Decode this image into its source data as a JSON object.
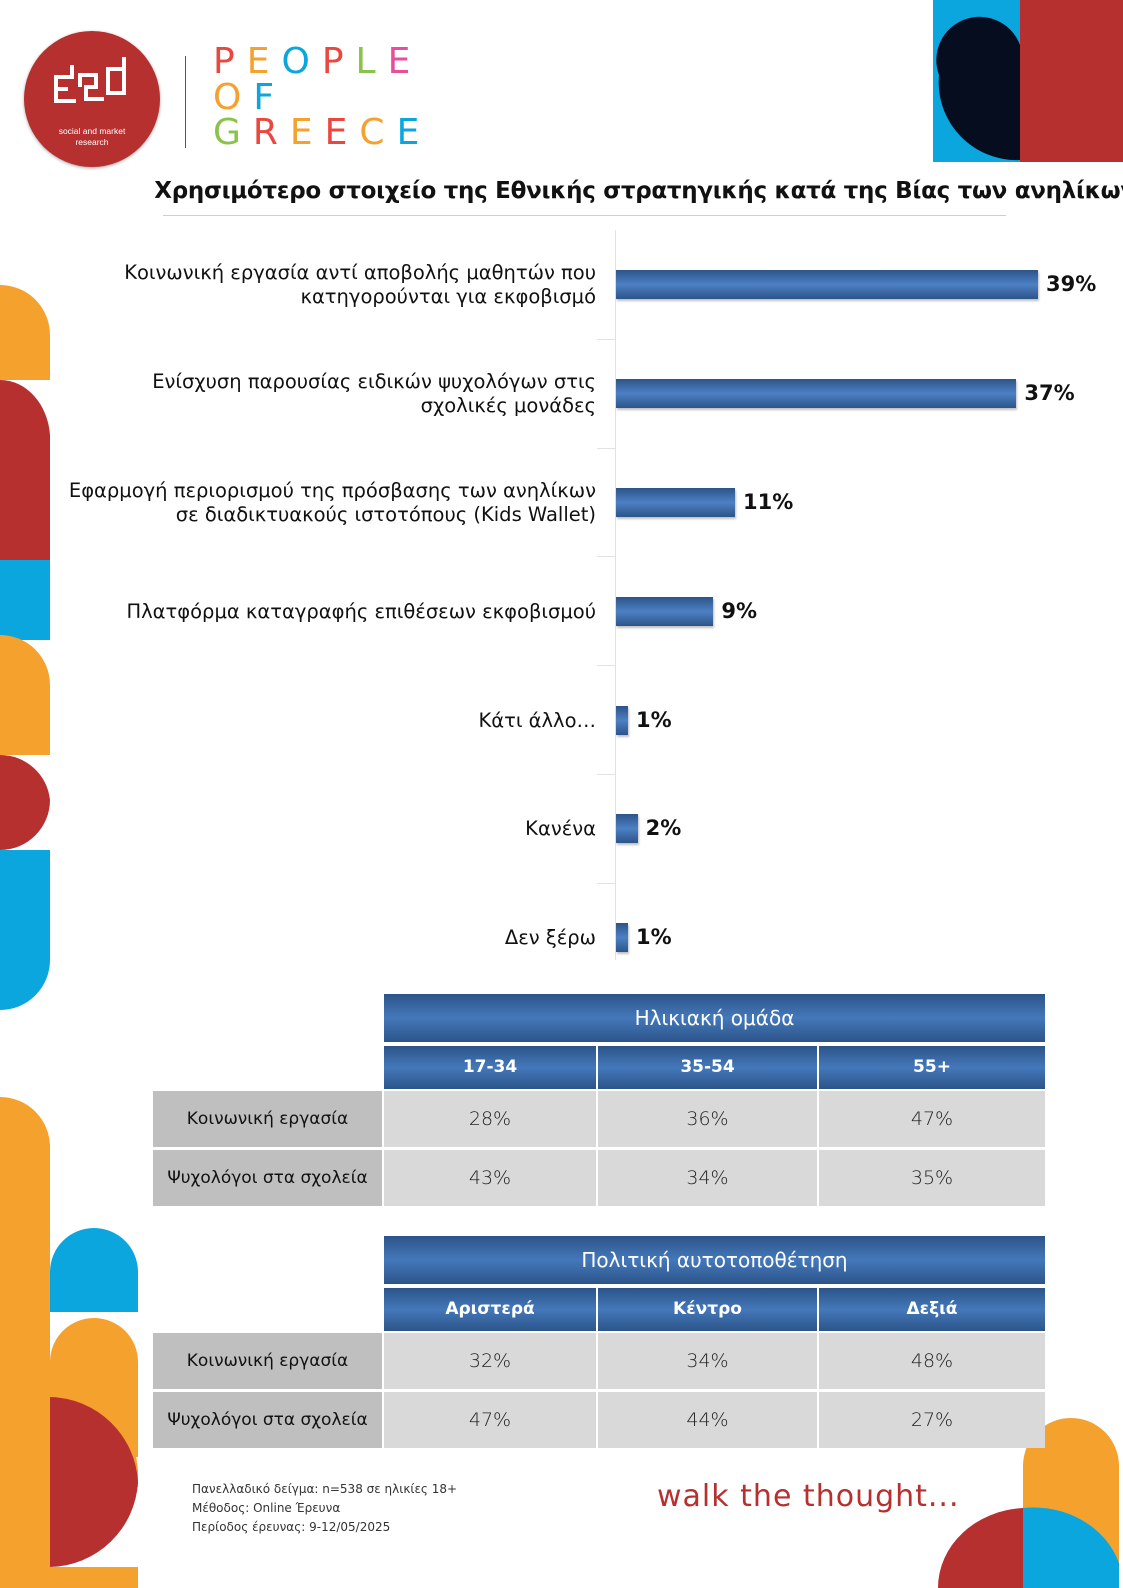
{
  "brand": {
    "logo_sub_line1": "social and market",
    "logo_sub_line2": "research",
    "people_of_greece": [
      {
        "letters": [
          {
            "ch": "P",
            "color": "#e9473f"
          },
          {
            "ch": "E",
            "color": "#f4a12e"
          },
          {
            "ch": "O",
            "color": "#0aa6dd"
          },
          {
            "ch": "P",
            "color": "#e9473f"
          },
          {
            "ch": "L",
            "color": "#8bc34a"
          },
          {
            "ch": "E",
            "color": "#e94e9b"
          }
        ]
      },
      {
        "letters": [
          {
            "ch": "O",
            "color": "#f4a12e"
          },
          {
            "ch": "F",
            "color": "#0aa6dd"
          }
        ]
      },
      {
        "letters": [
          {
            "ch": "G",
            "color": "#8bc34a"
          },
          {
            "ch": "R",
            "color": "#e9473f"
          },
          {
            "ch": "E",
            "color": "#f4a12e"
          },
          {
            "ch": "E",
            "color": "#e9473f"
          },
          {
            "ch": "C",
            "color": "#f4a12e"
          },
          {
            "ch": "E",
            "color": "#0aa6dd"
          }
        ]
      }
    ],
    "colors": {
      "red": "#b5302f",
      "orange": "#f4a12e",
      "blue": "#0aa6dd",
      "navy": "#050d1f"
    }
  },
  "chart_data": {
    "type": "bar",
    "orientation": "horizontal",
    "title": "Χρησιμότερο στοιχείο της Εθνικής στρατηγικής κατά της Βίας των ανηλίκων",
    "categories": [
      "Κοινωνική εργασία αντί αποβολής μαθητών που κατηγορούνται για εκφοβισμό",
      "Ενίσχυση παρουσίας ειδικών ψυχολόγων στις σχολικές μονάδες",
      "Εφαρμογή περιορισμού της πρόσβασης των ανηλίκων σε διαδικτυακούς ιστοτόπους (Kids Wallet)",
      "Πλατφόρμα καταγραφής επιθέσεων εκφοβισμού",
      "Κάτι άλλο…",
      "Κανένα",
      "Δεν ξέρω"
    ],
    "values": [
      39,
      37,
      11,
      9,
      1,
      2,
      1
    ],
    "value_labels": [
      "39%",
      "37%",
      "11%",
      "9%",
      "1%",
      "2%",
      "1%"
    ],
    "unit": "%",
    "bar_color": "#3d6cae"
  },
  "tables": [
    {
      "title": "Ηλικιακή ομάδα",
      "columns": [
        "17-34",
        "35-54",
        "55+"
      ],
      "rows": [
        {
          "label": "Κοινωνική εργασία",
          "cells": [
            "28%",
            "36%",
            "47%"
          ]
        },
        {
          "label": "Ψυχολόγοι στα σχολεία",
          "cells": [
            "43%",
            "34%",
            "35%"
          ]
        }
      ]
    },
    {
      "title": "Πολιτική αυτοτοποθέτηση",
      "columns": [
        "Αριστερά",
        "Κέντρο",
        "Δεξιά"
      ],
      "rows": [
        {
          "label": "Κοινωνική εργασία",
          "cells": [
            "32%",
            "34%",
            "48%"
          ]
        },
        {
          "label": "Ψυχολόγοι στα σχολεία",
          "cells": [
            "47%",
            "44%",
            "27%"
          ]
        }
      ]
    }
  ],
  "footer": {
    "sample": "Πανελλαδικό δείγμα: n=538 σε ηλικίες 18+",
    "method": "Μέθοδος: Online Έρευνα",
    "period": "Περίοδος έρευνας: 9-12/05/2025",
    "tagline": "walk the thought..."
  }
}
